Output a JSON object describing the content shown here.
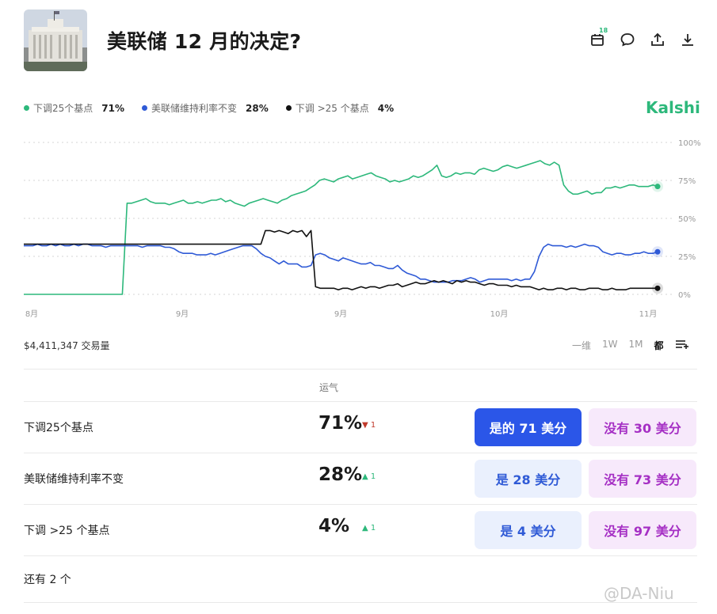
{
  "header": {
    "title": "美联储 12 月的决定?",
    "calendar_badge": "18"
  },
  "legend": [
    {
      "label": "下调25个基点",
      "pct": "71%",
      "color": "#2db87b"
    },
    {
      "label": "美联储维持利率不变",
      "pct": "28%",
      "color": "#2f5ad6"
    },
    {
      "label": "下调 >25 个基点",
      "pct": "4%",
      "color": "#111111"
    }
  ],
  "brand": "Kalshi",
  "volume": "$4,411,347 交易量",
  "range_tabs": [
    "一维",
    "1W",
    "1M",
    "都"
  ],
  "range_active": "都",
  "column_header": "运气",
  "outcomes": [
    {
      "name": "下调25个基点",
      "pct": "71%",
      "delta": "1",
      "dir": "down",
      "yes": "是的 71 美分",
      "no": "没有 30 美分"
    },
    {
      "name": "美联储维持利率不变",
      "pct": "28%",
      "delta": "1",
      "dir": "up",
      "yes": "是 28 美分",
      "no": "没有 73 美分"
    },
    {
      "name": "下调 >25 个基点",
      "pct": "4%",
      "delta": "1",
      "dir": "up",
      "yes": "是 4 美分",
      "no": "没有 97 美分"
    }
  ],
  "more": "还有 2 个",
  "watermark": "@DA-Niu",
  "chart_data": {
    "type": "line",
    "x_tick_labels": [
      "8月",
      "9月",
      "9月",
      "10月",
      "11月"
    ],
    "y_tick_labels": [
      "100%",
      "75%",
      "50%",
      "25%",
      "0%"
    ],
    "ylim": [
      0,
      100
    ],
    "grid": true,
    "series": [
      {
        "name": "下调25个基点",
        "color": "#2db87b",
        "values": [
          0,
          0,
          0,
          0,
          0,
          0,
          0,
          0,
          0,
          0,
          0,
          0,
          0,
          0,
          0,
          0,
          0,
          0,
          0,
          0,
          0,
          0,
          60,
          60,
          61,
          62,
          63,
          61,
          60,
          60,
          60,
          59,
          60,
          61,
          62,
          60,
          60,
          61,
          60,
          61,
          62,
          62,
          63,
          61,
          62,
          60,
          59,
          58,
          60,
          61,
          62,
          63,
          62,
          61,
          60,
          62,
          63,
          65,
          66,
          67,
          68,
          70,
          72,
          75,
          76,
          75,
          74,
          76,
          77,
          78,
          76,
          77,
          78,
          79,
          80,
          78,
          77,
          76,
          74,
          75,
          74,
          75,
          76,
          78,
          77,
          78,
          80,
          82,
          85,
          78,
          77,
          78,
          80,
          79,
          80,
          80,
          79,
          82,
          83,
          82,
          81,
          82,
          84,
          85,
          84,
          83,
          84,
          85,
          86,
          87,
          88,
          86,
          85,
          87,
          85,
          72,
          68,
          66,
          66,
          67,
          68,
          66,
          67,
          67,
          70,
          70,
          71,
          70,
          71,
          72,
          72,
          71,
          71,
          71,
          72,
          71
        ]
      },
      {
        "name": "美联储维持利率不变",
        "color": "#2f5ad6",
        "values": [
          32,
          32,
          32,
          33,
          32,
          32,
          33,
          32,
          33,
          32,
          32,
          33,
          32,
          33,
          33,
          32,
          32,
          32,
          31,
          32,
          32,
          32,
          32,
          32,
          32,
          32,
          31,
          32,
          32,
          32,
          32,
          31,
          31,
          30,
          28,
          27,
          27,
          27,
          26,
          26,
          26,
          27,
          26,
          27,
          28,
          29,
          30,
          31,
          32,
          32,
          32,
          30,
          27,
          25,
          24,
          22,
          20,
          22,
          20,
          20,
          20,
          18,
          18,
          19,
          26,
          27,
          26,
          24,
          23,
          22,
          24,
          23,
          22,
          21,
          20,
          20,
          21,
          19,
          19,
          18,
          17,
          17,
          19,
          16,
          14,
          13,
          12,
          10,
          10,
          9,
          8,
          8,
          8,
          8,
          9,
          9,
          9,
          10,
          11,
          10,
          8,
          9,
          10,
          10,
          10,
          10,
          10,
          9,
          10,
          9,
          10,
          10,
          15,
          25,
          31,
          33,
          32,
          32,
          32,
          31,
          32,
          31,
          32,
          33,
          32,
          32,
          31,
          28,
          27,
          26,
          27,
          27,
          26,
          26,
          27,
          27,
          28,
          27,
          27,
          28
        ]
      },
      {
        "name": "下调 >25 个基点",
        "color": "#111111",
        "values": [
          33,
          33,
          33,
          33,
          33,
          33,
          33,
          33,
          33,
          33,
          33,
          33,
          33,
          33,
          33,
          33,
          33,
          33,
          33,
          33,
          33,
          33,
          33,
          33,
          33,
          33,
          33,
          33,
          33,
          33,
          33,
          33,
          33,
          33,
          33,
          33,
          33,
          33,
          33,
          33,
          33,
          33,
          33,
          33,
          33,
          33,
          33,
          33,
          33,
          33,
          33,
          33,
          33,
          42,
          42,
          41,
          42,
          41,
          40,
          42,
          41,
          42,
          38,
          42,
          5,
          4,
          4,
          4,
          4,
          3,
          4,
          4,
          3,
          4,
          5,
          4,
          5,
          5,
          4,
          5,
          6,
          6,
          7,
          5,
          6,
          7,
          8,
          7,
          7,
          8,
          9,
          8,
          9,
          8,
          7,
          9,
          8,
          9,
          8,
          8,
          7,
          6,
          7,
          7,
          6,
          6,
          6,
          5,
          6,
          5,
          5,
          5,
          4,
          3,
          4,
          3,
          3,
          4,
          4,
          3,
          4,
          4,
          3,
          3,
          4,
          4,
          4,
          3,
          3,
          4,
          3,
          3,
          3,
          4,
          4,
          4,
          4,
          4,
          4,
          4
        ]
      }
    ]
  }
}
